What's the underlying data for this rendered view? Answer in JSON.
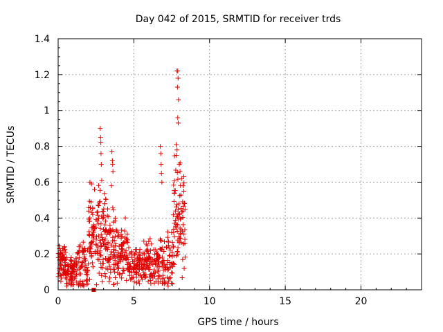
{
  "chart_data": {
    "type": "scatter",
    "title": "Day 042 of 2015, SRMTID for receiver trds",
    "xlabel": "GPS time / hours",
    "ylabel": "SRMTID / TECUs",
    "xlim": [
      0,
      24
    ],
    "ylim": [
      0,
      1.4
    ],
    "x_ticks": [
      0,
      5,
      10,
      15,
      20
    ],
    "x_tick_labels": [
      "0",
      "5",
      "10",
      "15",
      "20"
    ],
    "y_ticks": [
      0,
      0.2,
      0.4,
      0.6,
      0.8,
      1,
      1.2,
      1.4
    ],
    "y_tick_labels": [
      "0",
      "0.2",
      "0.4",
      "0.6",
      "0.8",
      "1",
      "1.2",
      "1.4"
    ],
    "grid": true,
    "marker": "+",
    "series_color": "#e00000",
    "square_marker": {
      "x": 2.35,
      "y": 0.0
    },
    "clusters": [
      {
        "range": [
          0.0,
          0.5
        ],
        "count": 60,
        "base": 0.15,
        "spread": 0.09,
        "seed": 1
      },
      {
        "range": [
          0.5,
          1.2
        ],
        "count": 70,
        "base": 0.1,
        "spread": 0.08,
        "seed": 2
      },
      {
        "range": [
          1.2,
          2.0
        ],
        "count": 70,
        "base": 0.14,
        "spread": 0.12,
        "seed": 3
      },
      {
        "range": [
          2.0,
          2.6
        ],
        "count": 60,
        "base": 0.3,
        "spread": 0.18,
        "seed": 4
      },
      {
        "range": [
          2.6,
          3.2
        ],
        "count": 70,
        "base": 0.28,
        "spread": 0.22,
        "seed": 5
      },
      {
        "range": [
          3.2,
          3.9
        ],
        "count": 70,
        "base": 0.24,
        "spread": 0.16,
        "seed": 6
      },
      {
        "range": [
          3.9,
          4.6
        ],
        "count": 70,
        "base": 0.22,
        "spread": 0.12,
        "seed": 7
      },
      {
        "range": [
          4.6,
          5.6
        ],
        "count": 90,
        "base": 0.12,
        "spread": 0.08,
        "seed": 8
      },
      {
        "range": [
          5.6,
          6.6
        ],
        "count": 90,
        "base": 0.14,
        "spread": 0.09,
        "seed": 9
      },
      {
        "range": [
          6.6,
          7.6
        ],
        "count": 80,
        "base": 0.15,
        "spread": 0.13,
        "seed": 10
      },
      {
        "range": [
          7.6,
          8.4
        ],
        "count": 80,
        "base": 0.38,
        "spread": 0.25,
        "seed": 11
      }
    ],
    "highlights": [
      {
        "x": 2.78,
        "y": 0.9
      },
      {
        "x": 2.8,
        "y": 0.85
      },
      {
        "x": 2.82,
        "y": 0.82
      },
      {
        "x": 2.83,
        "y": 0.76
      },
      {
        "x": 2.85,
        "y": 0.7
      },
      {
        "x": 2.88,
        "y": 0.61
      },
      {
        "x": 3.55,
        "y": 0.77
      },
      {
        "x": 3.58,
        "y": 0.72
      },
      {
        "x": 3.6,
        "y": 0.7
      },
      {
        "x": 3.62,
        "y": 0.66
      },
      {
        "x": 3.52,
        "y": 0.58
      },
      {
        "x": 2.2,
        "y": 0.59
      },
      {
        "x": 2.1,
        "y": 0.6
      },
      {
        "x": 2.4,
        "y": 0.56
      },
      {
        "x": 6.75,
        "y": 0.8
      },
      {
        "x": 6.78,
        "y": 0.76
      },
      {
        "x": 6.8,
        "y": 0.7
      },
      {
        "x": 6.82,
        "y": 0.65
      },
      {
        "x": 6.85,
        "y": 0.6
      },
      {
        "x": 7.85,
        "y": 1.22
      },
      {
        "x": 7.9,
        "y": 1.22
      },
      {
        "x": 7.92,
        "y": 1.18
      },
      {
        "x": 7.88,
        "y": 1.13
      },
      {
        "x": 7.95,
        "y": 1.06
      },
      {
        "x": 7.9,
        "y": 0.96
      },
      {
        "x": 7.93,
        "y": 0.93
      },
      {
        "x": 7.8,
        "y": 0.81
      },
      {
        "x": 7.85,
        "y": 0.78
      },
      {
        "x": 7.82,
        "y": 0.75
      },
      {
        "x": 8.0,
        "y": 0.7
      },
      {
        "x": 8.05,
        "y": 0.66
      },
      {
        "x": 8.15,
        "y": 0.62
      },
      {
        "x": 8.25,
        "y": 0.58
      },
      {
        "x": 8.3,
        "y": 0.55
      },
      {
        "x": 8.35,
        "y": 0.48
      },
      {
        "x": 8.38,
        "y": 0.45
      }
    ]
  }
}
